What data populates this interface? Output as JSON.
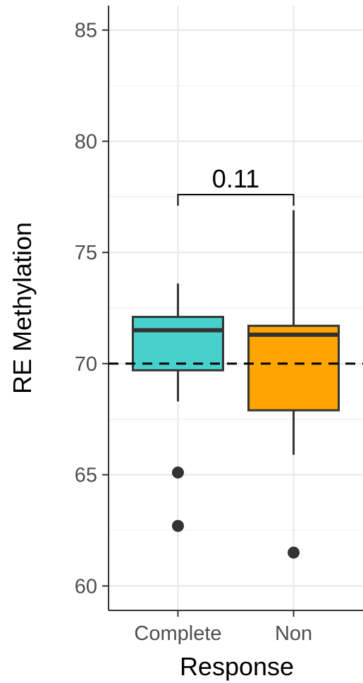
{
  "chart_data": {
    "type": "boxplot",
    "xlabel": "Response",
    "ylabel": "RE Methylation",
    "ylim": [
      58.9,
      86.1
    ],
    "yticks": [
      60,
      65,
      70,
      75,
      80,
      85
    ],
    "categories": [
      "Complete",
      "Non"
    ],
    "boxes": [
      {
        "category": "Complete",
        "color": "#48D1CC",
        "whisker_low": 68.3,
        "q1": 69.7,
        "median": 71.5,
        "q3": 72.1,
        "whisker_high": 73.6,
        "outliers": [
          65.1,
          62.7
        ]
      },
      {
        "category": "Non",
        "color": "#FFA500",
        "whisker_low": 65.9,
        "q1": 67.9,
        "median": 71.3,
        "q3": 71.7,
        "whisker_high": 76.9,
        "outliers": [
          61.5
        ]
      }
    ],
    "reference_line": {
      "y": 70,
      "style": "dashed",
      "color": "#000000"
    },
    "comparison": {
      "groups": [
        "Complete",
        "Non"
      ],
      "label": "0.11",
      "y": 77.6
    },
    "grid": true,
    "theme": "bw",
    "legend": "none"
  }
}
